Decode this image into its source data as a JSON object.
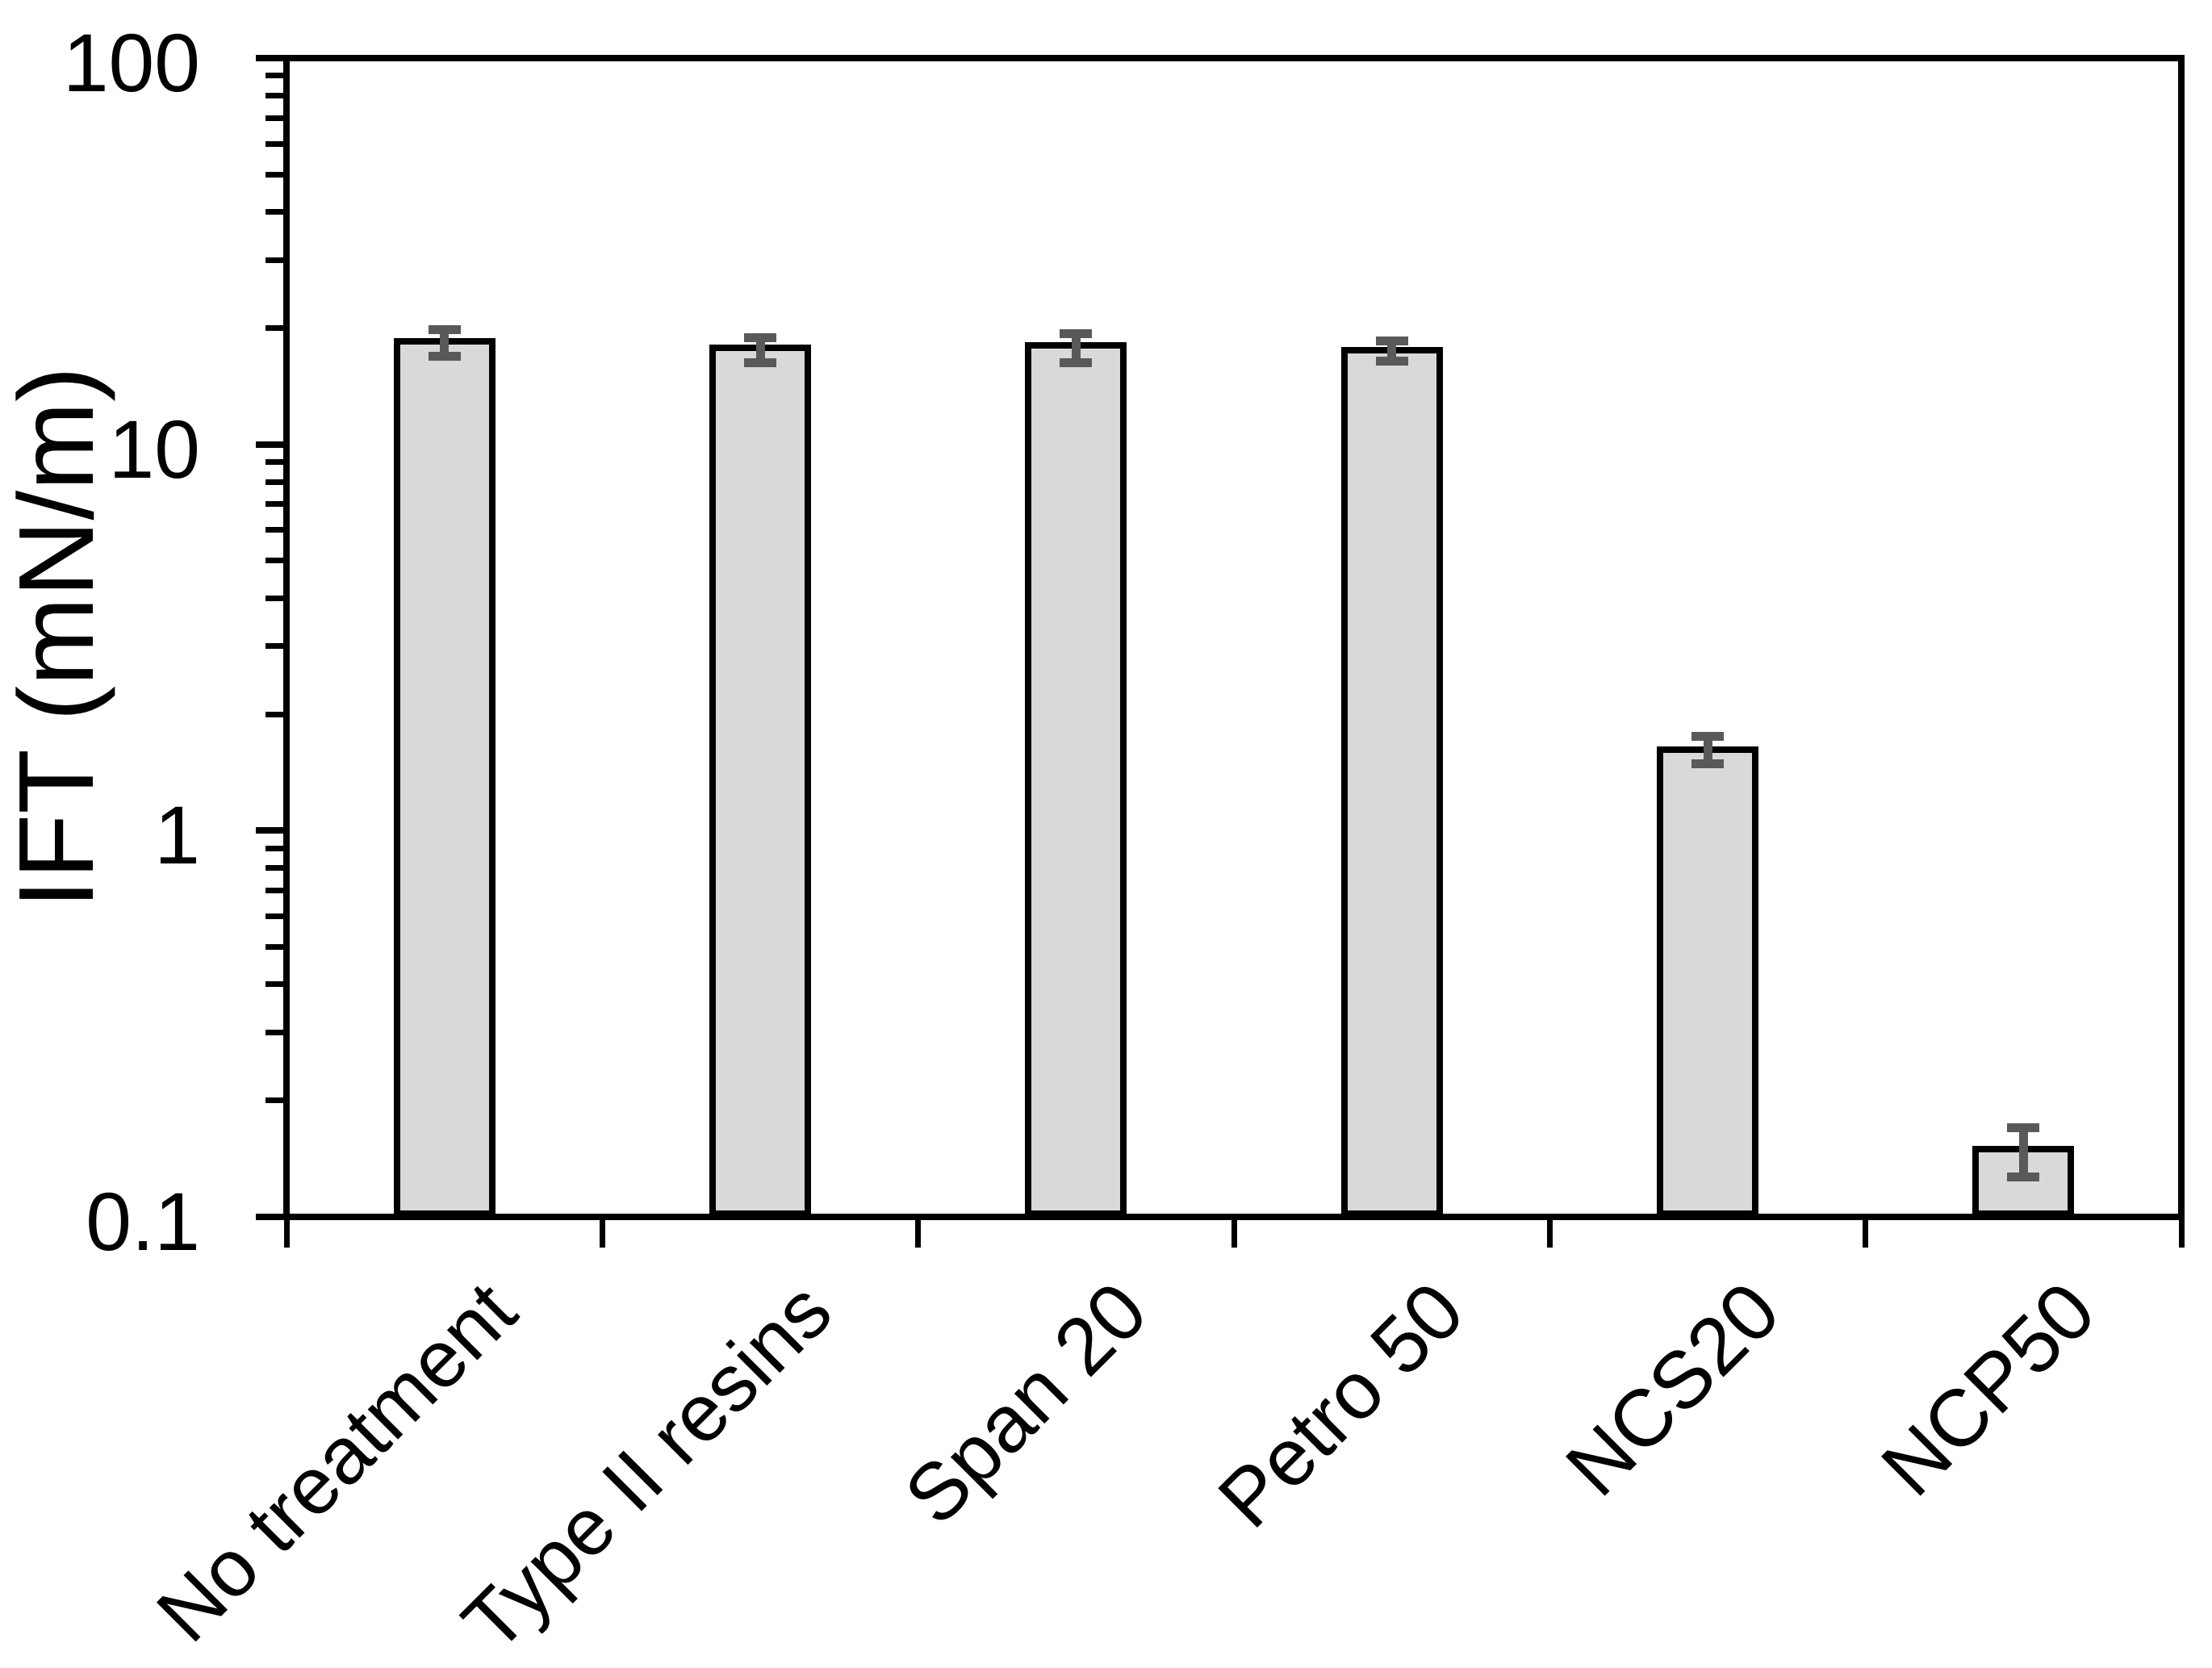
{
  "chart_data": {
    "type": "bar",
    "title": "",
    "ylabel": "IFT (mN/m)",
    "xlabel": "",
    "yscale": "log",
    "ylim": [
      0.1,
      100
    ],
    "ytick_values": [
      100,
      10,
      1,
      0.1
    ],
    "ytick_labels": [
      "100",
      "10",
      "1",
      "0.1"
    ],
    "grid": false,
    "legend": null,
    "categories": [
      "No treatment",
      "Type II resins",
      "Span 20",
      "Petro 50",
      "NCS20",
      "NCP50"
    ],
    "values": [
      18.5,
      17.8,
      18.0,
      17.5,
      1.62,
      0.15
    ],
    "error_high": [
      19.8,
      18.9,
      19.3,
      18.5,
      1.75,
      0.17
    ],
    "error_low": [
      16.9,
      16.3,
      16.3,
      16.4,
      1.49,
      0.127
    ],
    "colors": {
      "bar_fill": "#D9D9D9",
      "bar_border": "#000000",
      "error_bar": "#595959",
      "axis": "#000000"
    }
  }
}
